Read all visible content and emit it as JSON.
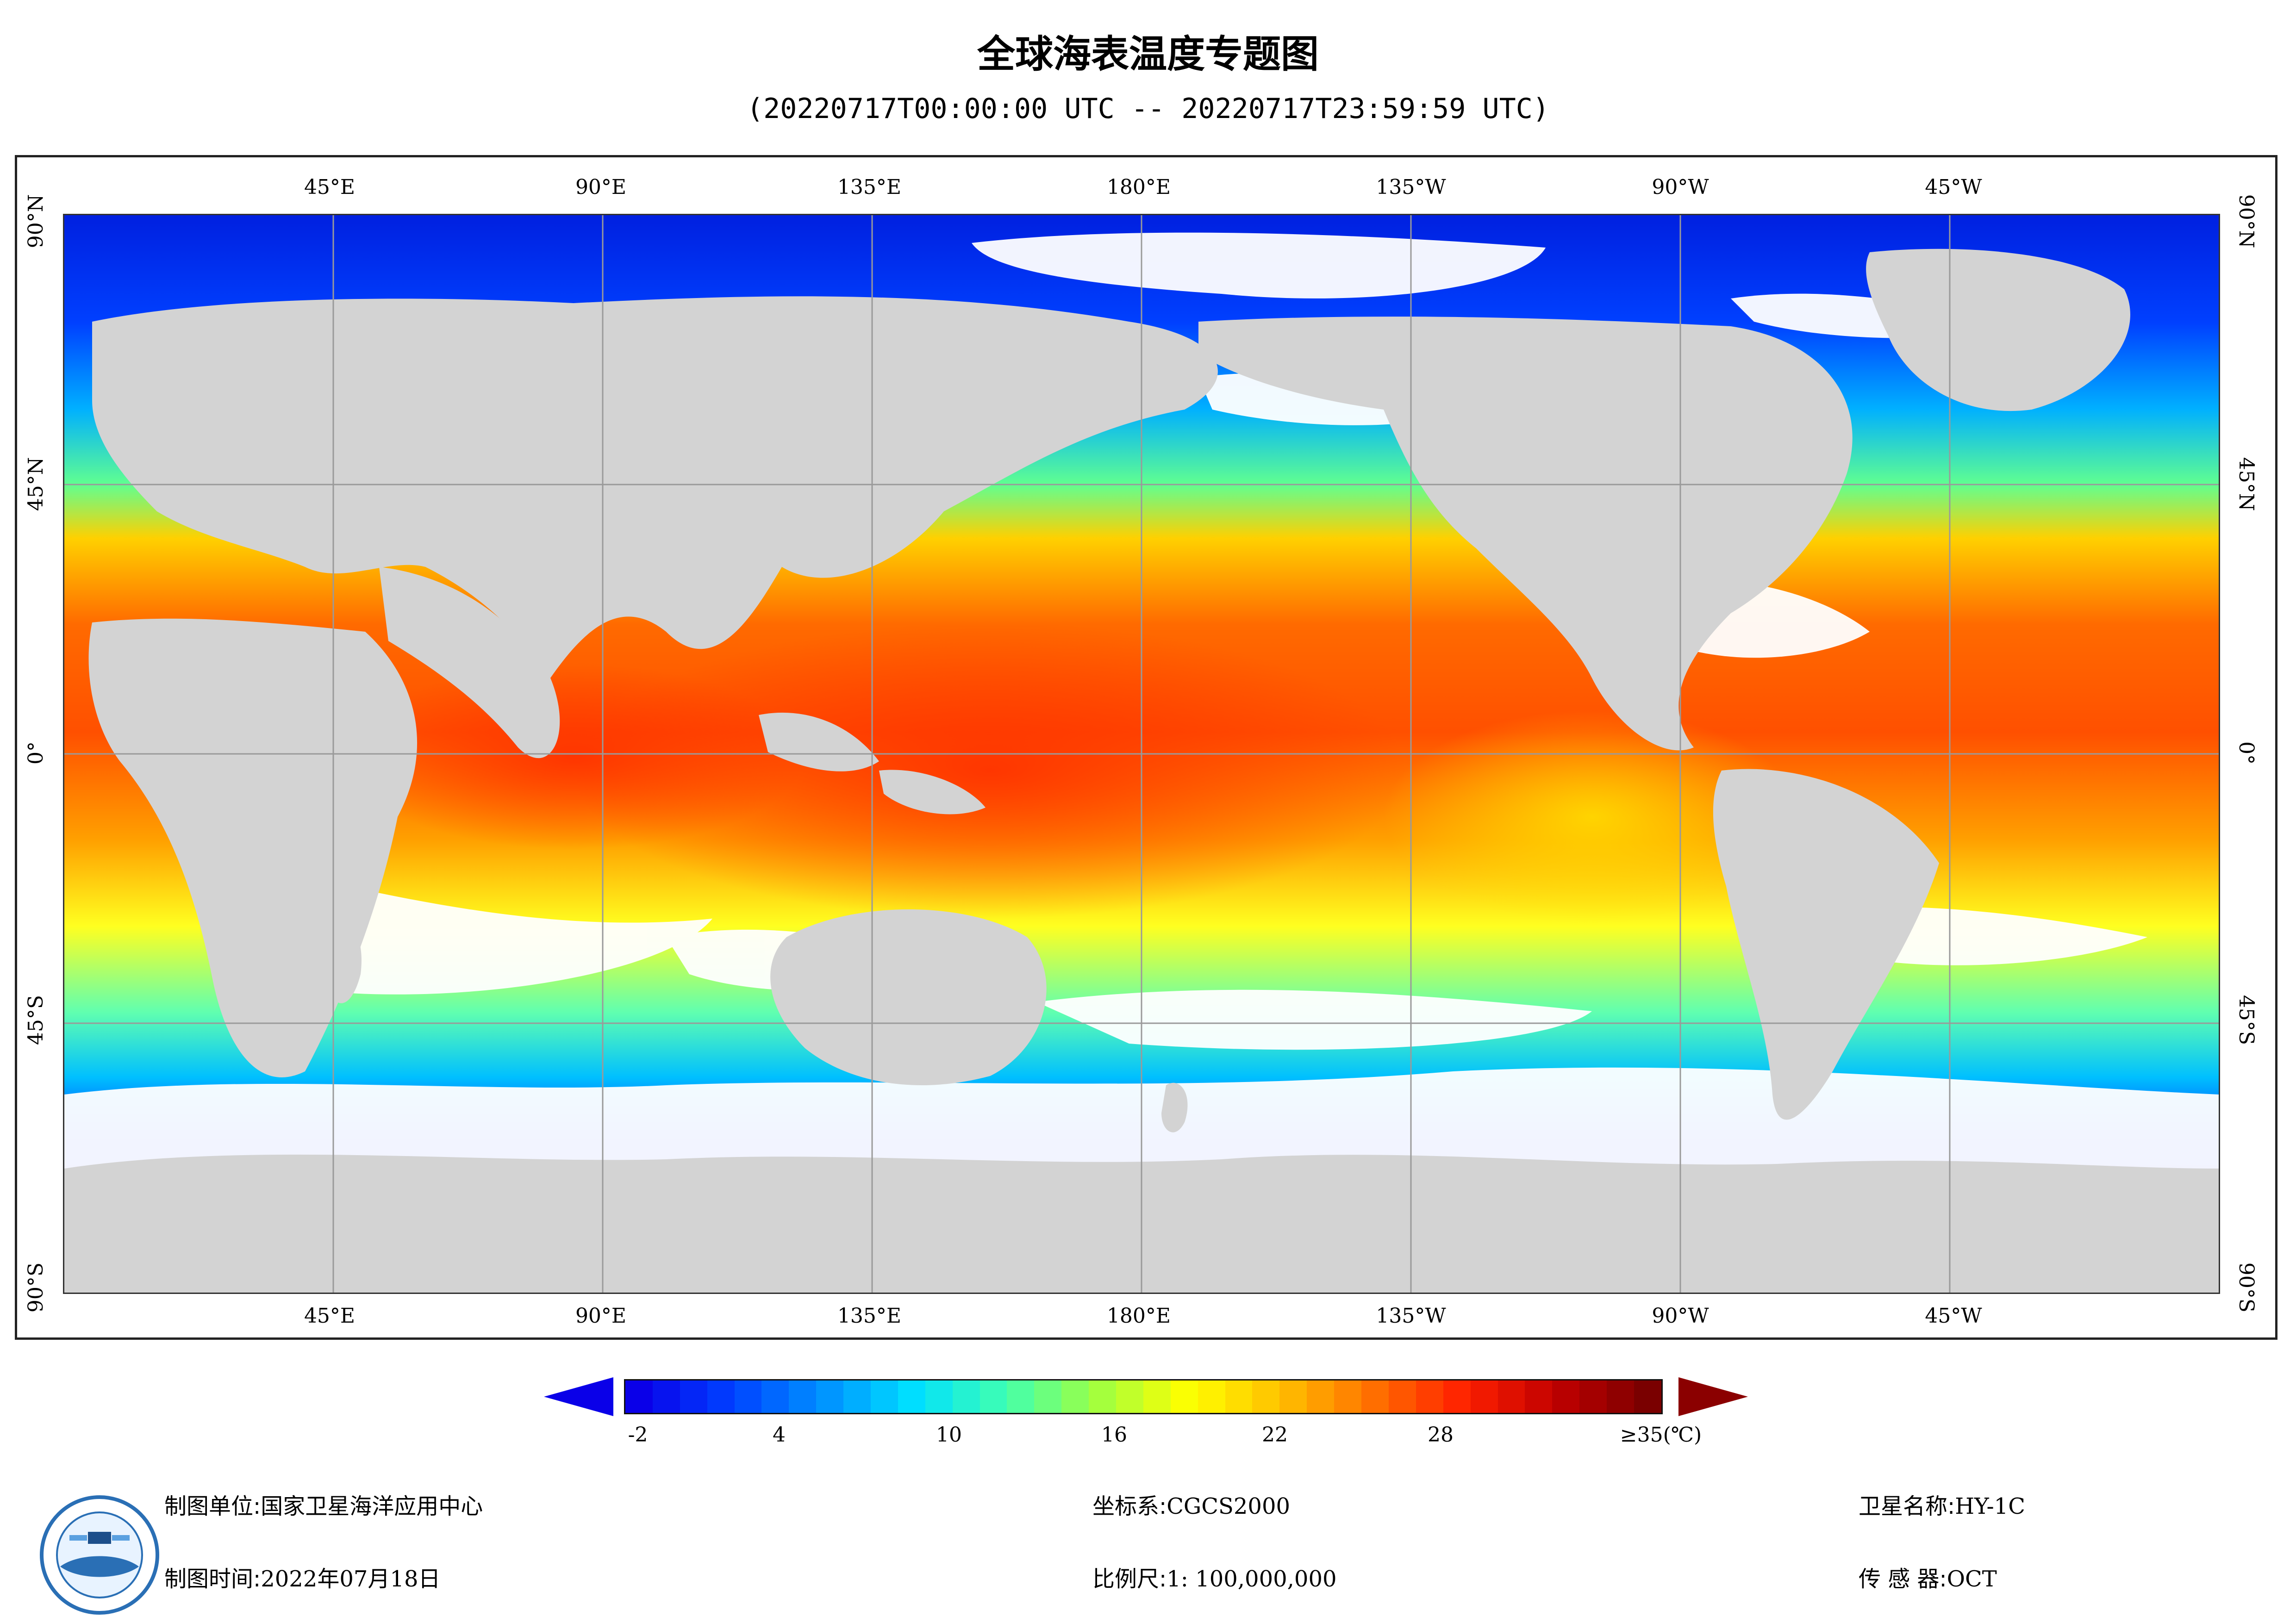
{
  "title": "全球海表温度专题图",
  "subtitle": "(20220717T00:00:00 UTC -- 20220717T23:59:59 UTC)",
  "map": {
    "lon_labels": [
      "45°E",
      "90°E",
      "135°E",
      "180°E",
      "135°W",
      "90°W",
      "45°W"
    ],
    "lat_labels": [
      "90°N",
      "45°N",
      "0°",
      "45°S",
      "90°S"
    ],
    "land_color": "#d3d3d3",
    "nodata_color": "#ffffff",
    "grid": true
  },
  "colorbar": {
    "tick_labels": [
      "-2",
      "4",
      "10",
      "16",
      "22",
      "28",
      "≥35(℃)"
    ],
    "min": -3,
    "max": 35,
    "under_color": "#0a00e8",
    "over_color": "#8b0000",
    "stops": [
      "#0a00e8",
      "#0040ff",
      "#0090ff",
      "#00e0ff",
      "#40ffb0",
      "#a0ff40",
      "#ffff00",
      "#ffc000",
      "#ff7000",
      "#ff2000",
      "#c00000",
      "#7a0000"
    ]
  },
  "footer": {
    "unit_label": "制图单位:",
    "unit_value": "国家卫星海洋应用中心",
    "time_label": "制图时间:",
    "time_value": "2022年07月18日",
    "crs_label": "坐标系:",
    "crs_value": "CGCS2000",
    "scale_label": "比例尺:",
    "scale_value": "1: 100,000,000",
    "satellite_label": "卫星名称:",
    "satellite_value": "HY-1C",
    "sensor_label": "传 感 器:",
    "sensor_value": "OCT"
  }
}
